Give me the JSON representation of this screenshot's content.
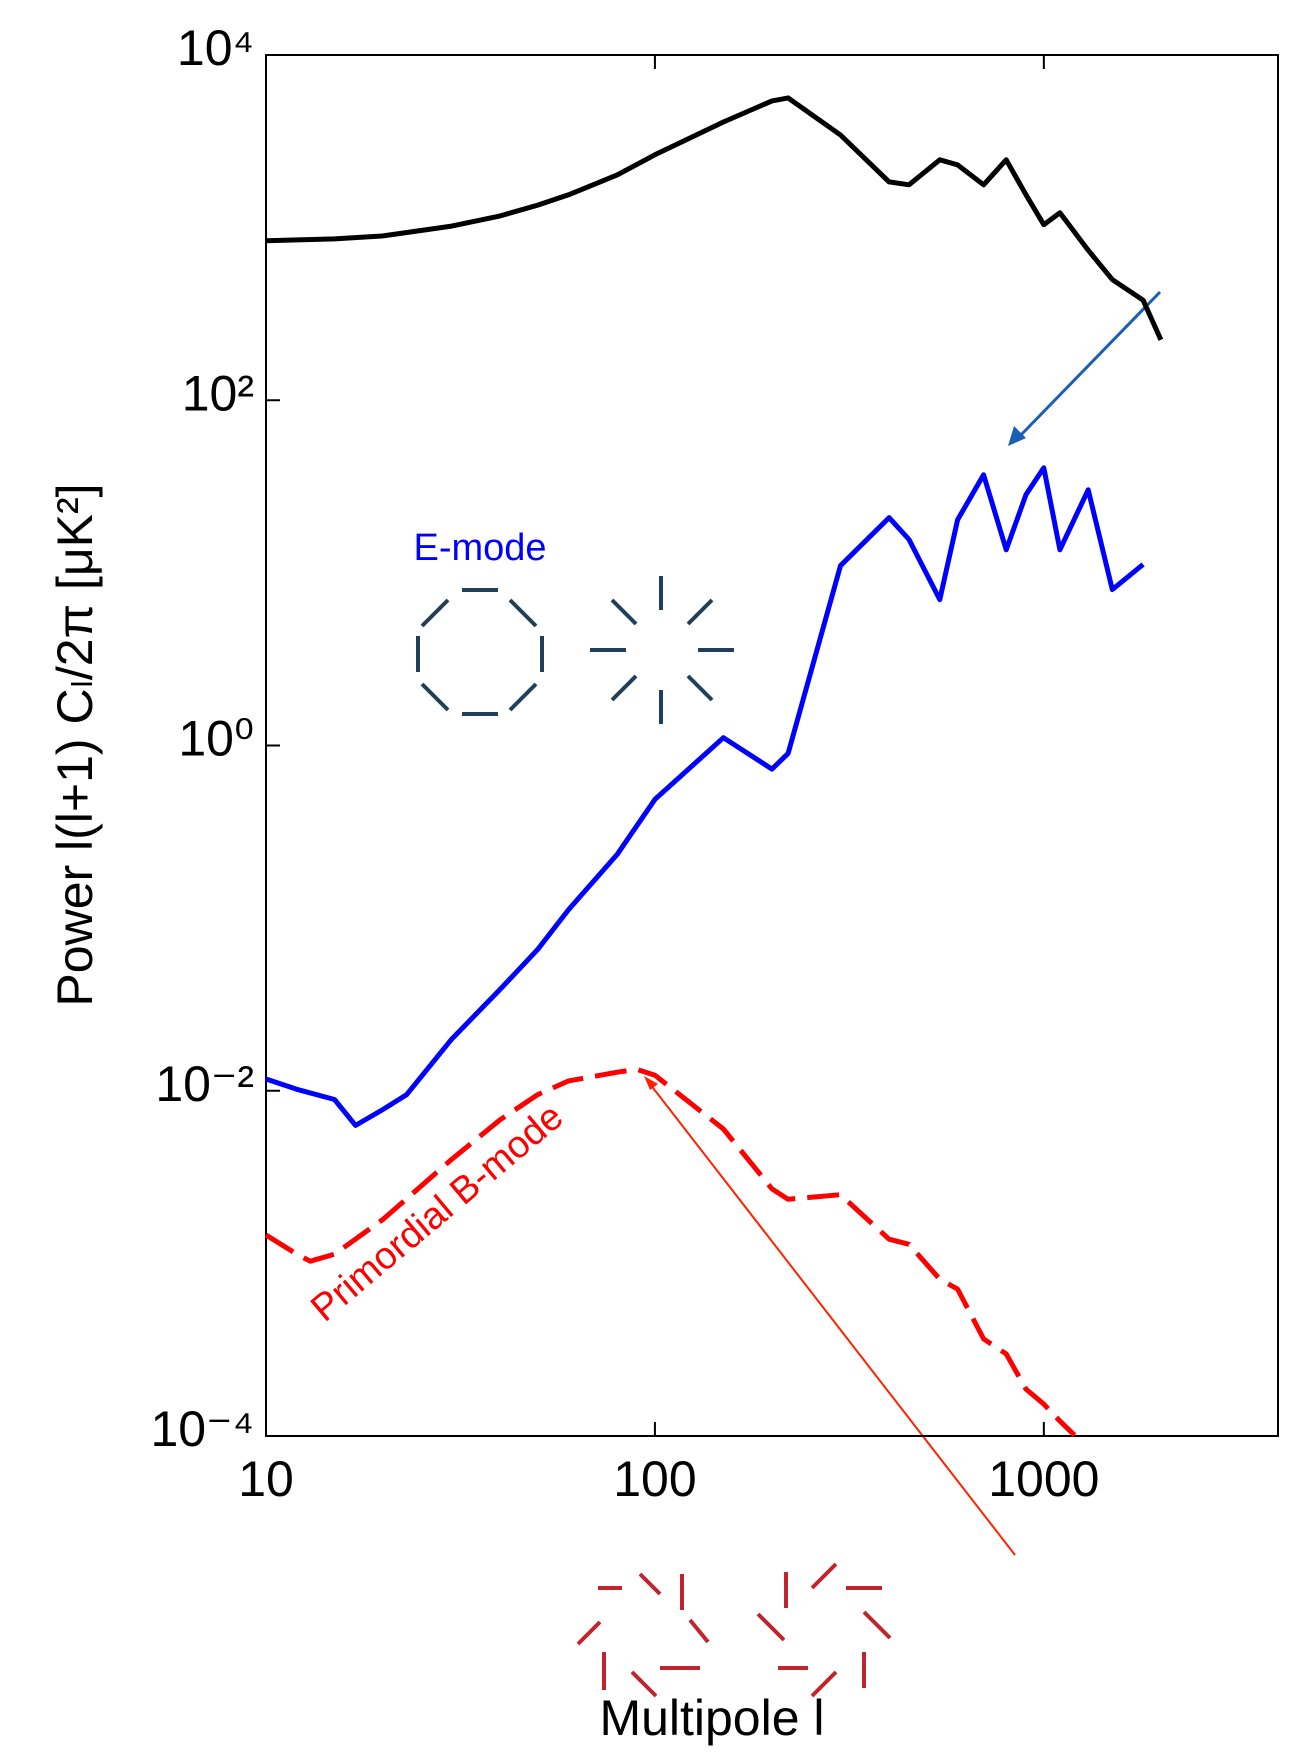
{
  "chart_data": {
    "type": "line",
    "x_label": "Multipole l",
    "y_label": "Power l(l+1) Cₗ/2π [μK²]",
    "x_log": true,
    "y_log": true,
    "xlim": [
      10,
      4000
    ],
    "ylim": [
      0.0001,
      10000
    ],
    "xticks": [
      10,
      100,
      1000
    ],
    "yticks": [
      {
        "value": 0.0001,
        "label": "10⁻⁴"
      },
      {
        "value": 0.01,
        "label": "10⁻²"
      },
      {
        "value": 1,
        "label": "10⁰"
      },
      {
        "value": 100,
        "label": "10²"
      },
      {
        "value": 10000,
        "label": "10⁴"
      }
    ],
    "annotations": [
      "E-mode",
      "Primordial B-mode"
    ],
    "series": [
      {
        "color": "#000000",
        "style": "solid",
        "x": [
          10,
          15,
          20,
          30,
          40,
          50,
          60,
          80,
          100,
          150,
          200,
          220,
          300,
          400,
          450,
          540,
          600,
          700,
          800,
          900,
          1000,
          1100,
          1300,
          1500,
          1800,
          2000
        ],
        "values": [
          840,
          860,
          895,
          1020,
          1170,
          1350,
          1550,
          2020,
          2640,
          4090,
          5420,
          5640,
          3440,
          1840,
          1770,
          2470,
          2310,
          1770,
          2470,
          1550,
          1040,
          1220,
          740,
          500,
          380,
          224
        ]
      },
      {
        "color": "#0000ff",
        "style": "solid",
        "x": [
          10,
          12,
          15,
          17,
          20,
          23,
          30,
          40,
          50,
          60,
          80,
          100,
          150,
          200,
          220,
          300,
          400,
          450,
          540,
          600,
          700,
          800,
          900,
          1000,
          1100,
          1300,
          1500,
          1800
        ],
        "values": [
          0.0117,
          0.0102,
          0.0089,
          0.0063,
          0.0078,
          0.0095,
          0.0199,
          0.0387,
          0.066,
          0.112,
          0.234,
          0.487,
          1.11,
          0.73,
          0.9,
          11,
          20.9,
          15.6,
          7.0,
          20.3,
          37,
          13.6,
          28.4,
          40.6,
          13.6,
          30.3,
          8.0,
          11.2
        ]
      },
      {
        "color": "#ff0000",
        "style": "dashed",
        "x": [
          10,
          12,
          13,
          15,
          20,
          30,
          40,
          50,
          60,
          80,
          90,
          100,
          150,
          200,
          220,
          300,
          400,
          450,
          540,
          600,
          700,
          800,
          900,
          1000,
          1100,
          1200
        ],
        "values": [
          0.00146,
          0.00113,
          0.00103,
          0.00113,
          0.0018,
          0.004,
          0.0068,
          0.0095,
          0.0114,
          0.0128,
          0.0133,
          0.0123,
          0.006,
          0.0027,
          0.00235,
          0.0025,
          0.00138,
          0.00129,
          0.00081,
          0.00071,
          0.000365,
          0.000299,
          0.000187,
          0.000153,
          0.000122,
          0.000101
        ]
      }
    ]
  }
}
